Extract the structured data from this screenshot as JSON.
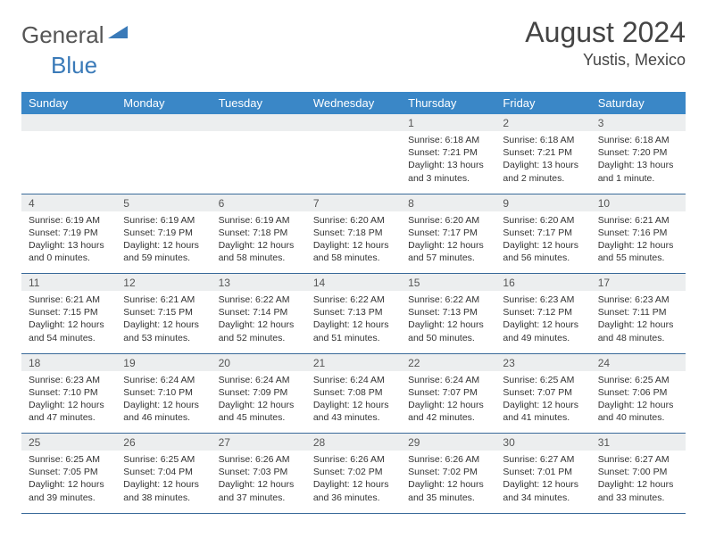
{
  "logo": {
    "word1": "General",
    "word2": "Blue"
  },
  "header": {
    "title": "August 2024",
    "location": "Yustis, Mexico"
  },
  "style": {
    "header_bg": "#3a87c7",
    "header_fg": "#ffffff",
    "daynum_bg": "#eceeef",
    "cell_border": "#3a6a9a",
    "body_font_size": 10.5,
    "title_font_size": 32,
    "location_font_size": 18,
    "day_header_font_size": 13
  },
  "day_headers": [
    "Sunday",
    "Monday",
    "Tuesday",
    "Wednesday",
    "Thursday",
    "Friday",
    "Saturday"
  ],
  "weeks": [
    {
      "nums": [
        "",
        "",
        "",
        "",
        "1",
        "2",
        "3"
      ],
      "cells": [
        null,
        null,
        null,
        null,
        {
          "sunrise": "Sunrise: 6:18 AM",
          "sunset": "Sunset: 7:21 PM",
          "daylight": "Daylight: 13 hours and 3 minutes."
        },
        {
          "sunrise": "Sunrise: 6:18 AM",
          "sunset": "Sunset: 7:21 PM",
          "daylight": "Daylight: 13 hours and 2 minutes."
        },
        {
          "sunrise": "Sunrise: 6:18 AM",
          "sunset": "Sunset: 7:20 PM",
          "daylight": "Daylight: 13 hours and 1 minute."
        }
      ]
    },
    {
      "nums": [
        "4",
        "5",
        "6",
        "7",
        "8",
        "9",
        "10"
      ],
      "cells": [
        {
          "sunrise": "Sunrise: 6:19 AM",
          "sunset": "Sunset: 7:19 PM",
          "daylight": "Daylight: 13 hours and 0 minutes."
        },
        {
          "sunrise": "Sunrise: 6:19 AM",
          "sunset": "Sunset: 7:19 PM",
          "daylight": "Daylight: 12 hours and 59 minutes."
        },
        {
          "sunrise": "Sunrise: 6:19 AM",
          "sunset": "Sunset: 7:18 PM",
          "daylight": "Daylight: 12 hours and 58 minutes."
        },
        {
          "sunrise": "Sunrise: 6:20 AM",
          "sunset": "Sunset: 7:18 PM",
          "daylight": "Daylight: 12 hours and 58 minutes."
        },
        {
          "sunrise": "Sunrise: 6:20 AM",
          "sunset": "Sunset: 7:17 PM",
          "daylight": "Daylight: 12 hours and 57 minutes."
        },
        {
          "sunrise": "Sunrise: 6:20 AM",
          "sunset": "Sunset: 7:17 PM",
          "daylight": "Daylight: 12 hours and 56 minutes."
        },
        {
          "sunrise": "Sunrise: 6:21 AM",
          "sunset": "Sunset: 7:16 PM",
          "daylight": "Daylight: 12 hours and 55 minutes."
        }
      ]
    },
    {
      "nums": [
        "11",
        "12",
        "13",
        "14",
        "15",
        "16",
        "17"
      ],
      "cells": [
        {
          "sunrise": "Sunrise: 6:21 AM",
          "sunset": "Sunset: 7:15 PM",
          "daylight": "Daylight: 12 hours and 54 minutes."
        },
        {
          "sunrise": "Sunrise: 6:21 AM",
          "sunset": "Sunset: 7:15 PM",
          "daylight": "Daylight: 12 hours and 53 minutes."
        },
        {
          "sunrise": "Sunrise: 6:22 AM",
          "sunset": "Sunset: 7:14 PM",
          "daylight": "Daylight: 12 hours and 52 minutes."
        },
        {
          "sunrise": "Sunrise: 6:22 AM",
          "sunset": "Sunset: 7:13 PM",
          "daylight": "Daylight: 12 hours and 51 minutes."
        },
        {
          "sunrise": "Sunrise: 6:22 AM",
          "sunset": "Sunset: 7:13 PM",
          "daylight": "Daylight: 12 hours and 50 minutes."
        },
        {
          "sunrise": "Sunrise: 6:23 AM",
          "sunset": "Sunset: 7:12 PM",
          "daylight": "Daylight: 12 hours and 49 minutes."
        },
        {
          "sunrise": "Sunrise: 6:23 AM",
          "sunset": "Sunset: 7:11 PM",
          "daylight": "Daylight: 12 hours and 48 minutes."
        }
      ]
    },
    {
      "nums": [
        "18",
        "19",
        "20",
        "21",
        "22",
        "23",
        "24"
      ],
      "cells": [
        {
          "sunrise": "Sunrise: 6:23 AM",
          "sunset": "Sunset: 7:10 PM",
          "daylight": "Daylight: 12 hours and 47 minutes."
        },
        {
          "sunrise": "Sunrise: 6:24 AM",
          "sunset": "Sunset: 7:10 PM",
          "daylight": "Daylight: 12 hours and 46 minutes."
        },
        {
          "sunrise": "Sunrise: 6:24 AM",
          "sunset": "Sunset: 7:09 PM",
          "daylight": "Daylight: 12 hours and 45 minutes."
        },
        {
          "sunrise": "Sunrise: 6:24 AM",
          "sunset": "Sunset: 7:08 PM",
          "daylight": "Daylight: 12 hours and 43 minutes."
        },
        {
          "sunrise": "Sunrise: 6:24 AM",
          "sunset": "Sunset: 7:07 PM",
          "daylight": "Daylight: 12 hours and 42 minutes."
        },
        {
          "sunrise": "Sunrise: 6:25 AM",
          "sunset": "Sunset: 7:07 PM",
          "daylight": "Daylight: 12 hours and 41 minutes."
        },
        {
          "sunrise": "Sunrise: 6:25 AM",
          "sunset": "Sunset: 7:06 PM",
          "daylight": "Daylight: 12 hours and 40 minutes."
        }
      ]
    },
    {
      "nums": [
        "25",
        "26",
        "27",
        "28",
        "29",
        "30",
        "31"
      ],
      "cells": [
        {
          "sunrise": "Sunrise: 6:25 AM",
          "sunset": "Sunset: 7:05 PM",
          "daylight": "Daylight: 12 hours and 39 minutes."
        },
        {
          "sunrise": "Sunrise: 6:25 AM",
          "sunset": "Sunset: 7:04 PM",
          "daylight": "Daylight: 12 hours and 38 minutes."
        },
        {
          "sunrise": "Sunrise: 6:26 AM",
          "sunset": "Sunset: 7:03 PM",
          "daylight": "Daylight: 12 hours and 37 minutes."
        },
        {
          "sunrise": "Sunrise: 6:26 AM",
          "sunset": "Sunset: 7:02 PM",
          "daylight": "Daylight: 12 hours and 36 minutes."
        },
        {
          "sunrise": "Sunrise: 6:26 AM",
          "sunset": "Sunset: 7:02 PM",
          "daylight": "Daylight: 12 hours and 35 minutes."
        },
        {
          "sunrise": "Sunrise: 6:27 AM",
          "sunset": "Sunset: 7:01 PM",
          "daylight": "Daylight: 12 hours and 34 minutes."
        },
        {
          "sunrise": "Sunrise: 6:27 AM",
          "sunset": "Sunset: 7:00 PM",
          "daylight": "Daylight: 12 hours and 33 minutes."
        }
      ]
    }
  ]
}
